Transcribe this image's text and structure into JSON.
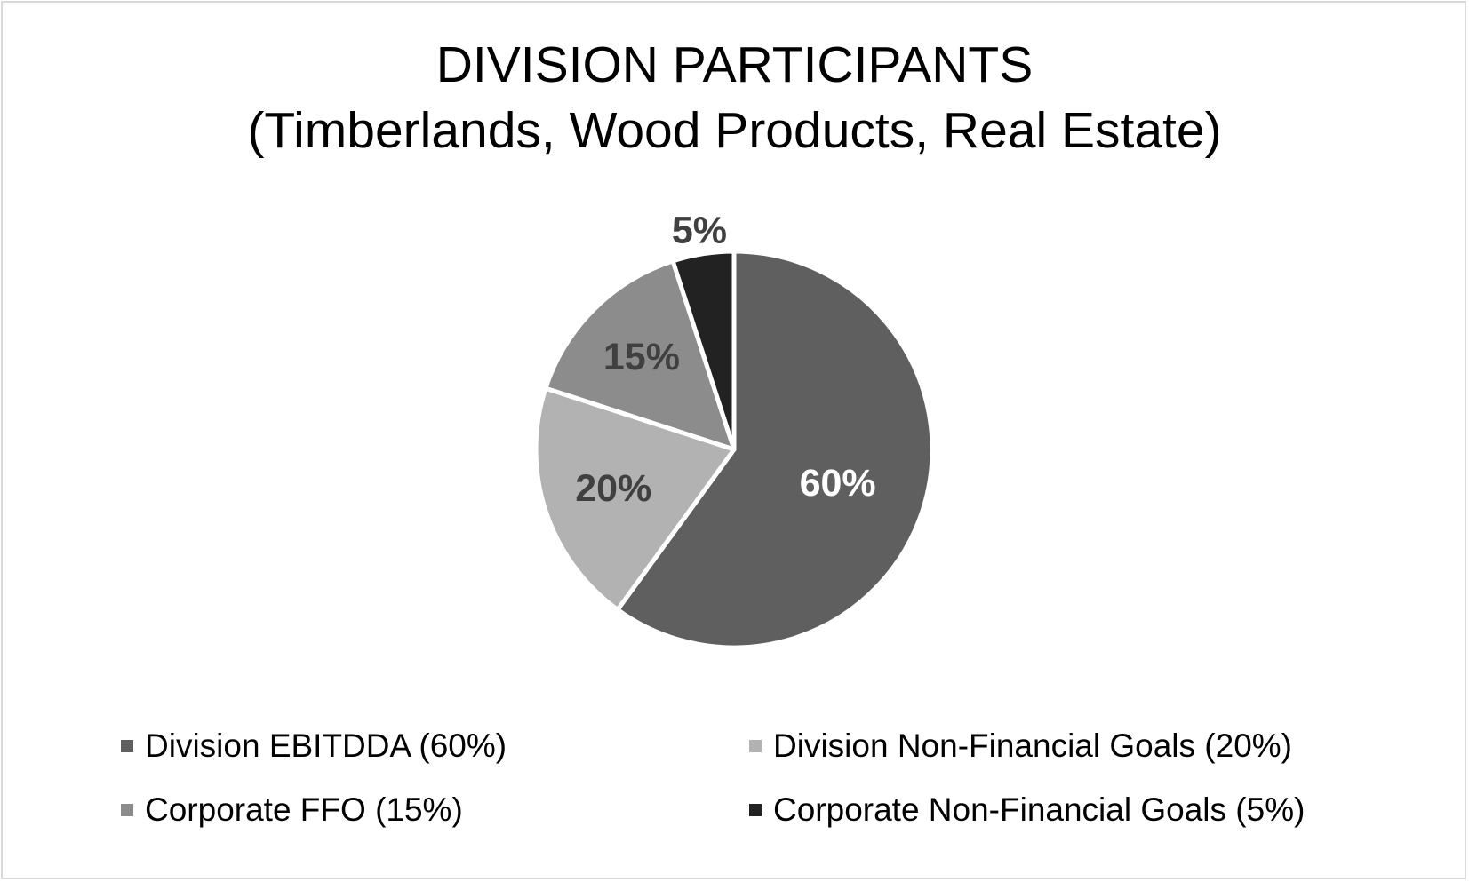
{
  "chart_data": {
    "type": "pie",
    "title": [
      "DIVISION PARTICIPANTS",
      "(Timberlands, Wood Products, Real Estate)"
    ],
    "slices": [
      {
        "label": "Division EBITDDA (60%)",
        "value": 60,
        "data_label": "60%",
        "color": "#5f5f5f",
        "label_color": "#ffffff"
      },
      {
        "label": "Division Non-Financial Goals (20%)",
        "value": 20,
        "data_label": "20%",
        "color": "#b2b2b2",
        "label_color": "#404040"
      },
      {
        "label": "Corporate FFO (15%)",
        "value": 15,
        "data_label": "15%",
        "color": "#8c8c8c",
        "label_color": "#404040"
      },
      {
        "label": "Corporate Non-Financial Goals (5%)",
        "value": 5,
        "data_label": "5%",
        "color": "#222222",
        "label_color": "#404040"
      }
    ],
    "start_angle_deg": 0,
    "direction": "clockwise",
    "legend_position": "bottom"
  }
}
